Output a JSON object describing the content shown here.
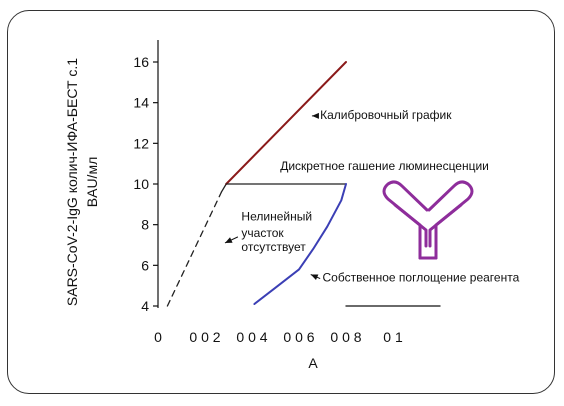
{
  "chart_data": {
    "type": "line",
    "ylabel_lines": [
      "SARS-CoV-2-IgG колич-ИФА-БЕСТ с.1",
      "BAU/мл"
    ],
    "xlabel": "A",
    "y_ticks": [
      "4",
      "6",
      "8",
      "10",
      "12",
      "14",
      "16"
    ],
    "x_ticks": [
      "0",
      "0 0 2",
      "0 0 4",
      "0 0 6",
      "0 0 8",
      "0 1"
    ],
    "xlim": [
      0,
      0.12
    ],
    "ylim": [
      4,
      16
    ],
    "series": [
      {
        "name": "",
        "style": "dashed",
        "color": "#222222",
        "points": [
          [
            0.004,
            4.0
          ],
          [
            0.027,
            9.6
          ]
        ]
      },
      {
        "name": "",
        "style": "solid",
        "color": "#222222",
        "points": [
          [
            0.027,
            9.6
          ],
          [
            0.029,
            10.0
          ]
        ]
      },
      {
        "name": "",
        "style": "solid",
        "color": "#8b1a1a",
        "points": [
          [
            0.029,
            10.0
          ],
          [
            0.08,
            16.0
          ]
        ]
      },
      {
        "name": "",
        "style": "solid",
        "color": "#222222",
        "points": [
          [
            0.029,
            10.0
          ],
          [
            0.08,
            10.0
          ]
        ]
      },
      {
        "name": "",
        "style": "solid",
        "color": "#3b3fb5",
        "points": [
          [
            0.041,
            4.1
          ],
          [
            0.05,
            4.9
          ],
          [
            0.06,
            5.8
          ],
          [
            0.066,
            6.8
          ],
          [
            0.072,
            7.9
          ],
          [
            0.078,
            9.2
          ],
          [
            0.08,
            10.0
          ]
        ]
      },
      {
        "name": "",
        "style": "solid",
        "color": "#111111",
        "points": [
          [
            0.08,
            4.0
          ],
          [
            0.12,
            4.0
          ]
        ]
      }
    ],
    "annotations": [
      {
        "text": "Калибровочный график",
        "x": 0.069,
        "y": 13.2
      },
      {
        "text": "Дискретное гашение люминесценции",
        "x": 0.052,
        "y": 10.7
      },
      {
        "text": "Нелинейный",
        "x": 0.0355,
        "y": 8.2
      },
      {
        "text": "участок",
        "x": 0.0355,
        "y": 7.4
      },
      {
        "text": "отсутствует",
        "x": 0.0355,
        "y": 6.7
      },
      {
        "text": "Собственное поглощение реагента",
        "x": 0.07,
        "y": 5.2
      }
    ],
    "antibody_color": "#8e2d9b"
  }
}
